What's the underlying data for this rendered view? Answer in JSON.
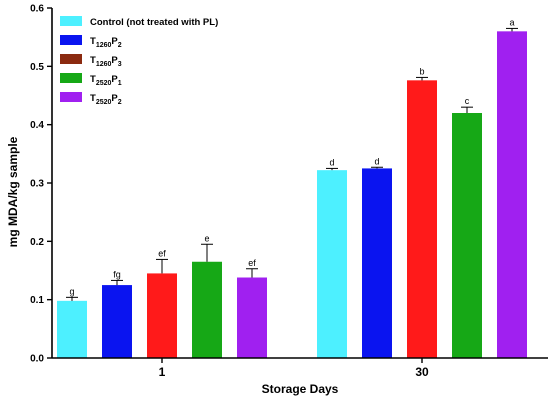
{
  "chart_data": {
    "type": "bar",
    "categories": [
      "1",
      "30"
    ],
    "xlabel": "Storage Days",
    "ylabel": "mg MDA/kg sample",
    "ylim": [
      0,
      0.6
    ],
    "yticks": [
      "0.0",
      "0.1",
      "0.2",
      "0.3",
      "0.4",
      "0.5",
      "0.6"
    ],
    "grid": false,
    "legend_position": "top-left",
    "series": [
      {
        "name": "Control (not treated with PL)",
        "legend": {
          "main": "Control (not treated with PL)",
          "sub": "",
          "tail": ""
        },
        "color": "#4df0ff",
        "values": [
          0.098,
          0.322
        ],
        "errors": [
          0.006,
          0.003
        ],
        "letters": [
          "g",
          "d"
        ]
      },
      {
        "name": "T1260P2",
        "legend": {
          "main": "T",
          "sub": "1260",
          "tail": "P",
          "sub2": "2"
        },
        "color": "#0a14f0",
        "values": [
          0.125,
          0.325
        ],
        "errors": [
          0.008,
          0.002
        ],
        "letters": [
          "fg",
          "d"
        ]
      },
      {
        "name": "T1260P3",
        "legend": {
          "main": "T",
          "sub": "1260",
          "tail": "P",
          "sub2": "3"
        },
        "color": "#ff1a1a",
        "values": [
          0.145,
          0.476
        ],
        "errors": [
          0.024,
          0.005
        ],
        "letters": [
          "ef",
          "b"
        ]
      },
      {
        "name": "T2520P1",
        "legend": {
          "main": "T",
          "sub": "2520",
          "tail": "P",
          "sub2": "1"
        },
        "color": "#16a816",
        "values": [
          0.165,
          0.42
        ],
        "errors": [
          0.03,
          0.01
        ],
        "letters": [
          "e",
          "c"
        ]
      },
      {
        "name": "T2520P2",
        "legend": {
          "main": "T",
          "sub": "2520",
          "tail": "P",
          "sub2": "2"
        },
        "color": "#a020f0",
        "values": [
          0.138,
          0.56
        ],
        "errors": [
          0.015,
          0.005
        ],
        "letters": [
          "ef",
          "a"
        ]
      }
    ],
    "legend_colors": [
      "#4df0ff",
      "#0a14f0",
      "#8b2a10",
      "#16a816",
      "#a020f0"
    ]
  }
}
